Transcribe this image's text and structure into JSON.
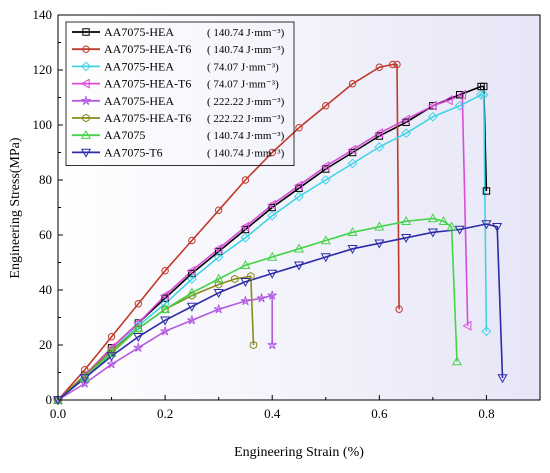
{
  "chart_data": {
    "type": "line",
    "xlabel": "Engineering Strain (%)",
    "ylabel": "Engineering Stress(MPa)",
    "xlim": [
      0,
      0.9
    ],
    "ylim": [
      0,
      140
    ],
    "xticks": [
      0.0,
      0.2,
      0.4,
      0.6,
      0.8
    ],
    "xtick_labels": [
      "0.0",
      "0.2",
      "0.4",
      "0.6",
      "0.8"
    ],
    "yticks": [
      0,
      20,
      40,
      60,
      80,
      100,
      120,
      140
    ],
    "ytick_labels": [
      "0",
      "20",
      "40",
      "60",
      "80",
      "100",
      "120",
      "140"
    ],
    "grid": false,
    "background": "gradient white-to-lavender",
    "legend": {
      "position": "top-left",
      "boxed": true
    },
    "series": [
      {
        "name": "AA7075-HEA",
        "energy": "( 140.74 J·mm⁻³)",
        "color": "#000000",
        "marker": "square",
        "x": [
          0.0,
          0.05,
          0.1,
          0.15,
          0.2,
          0.25,
          0.3,
          0.35,
          0.4,
          0.45,
          0.5,
          0.55,
          0.6,
          0.65,
          0.7,
          0.75,
          0.79,
          0.795,
          0.8
        ],
        "y": [
          0,
          9,
          19,
          28,
          37,
          46,
          54,
          62,
          70,
          77,
          84,
          90,
          96,
          101,
          107,
          111,
          114,
          114,
          76
        ]
      },
      {
        "name": "AA7075-HEA-T6",
        "energy": "( 140.74 J·mm⁻³)",
        "color": "#c0392b",
        "marker": "circle",
        "x": [
          0.0,
          0.05,
          0.1,
          0.15,
          0.2,
          0.25,
          0.3,
          0.35,
          0.4,
          0.45,
          0.5,
          0.55,
          0.6,
          0.625,
          0.633,
          0.637
        ],
        "y": [
          0,
          11,
          23,
          35,
          47,
          58,
          69,
          80,
          90,
          99,
          107,
          115,
          121,
          122,
          122,
          33
        ]
      },
      {
        "name": "AA7075-HEA",
        "energy": "( 74.07  J·mm⁻³)",
        "color": "#3fd3e6",
        "marker": "diamond",
        "x": [
          0.0,
          0.05,
          0.1,
          0.15,
          0.2,
          0.25,
          0.3,
          0.35,
          0.4,
          0.45,
          0.5,
          0.55,
          0.6,
          0.65,
          0.7,
          0.75,
          0.79,
          0.795,
          0.8
        ],
        "y": [
          0,
          8,
          18,
          27,
          35,
          44,
          52,
          59,
          67,
          74,
          80,
          86,
          92,
          97,
          103,
          107,
          111,
          111,
          25
        ]
      },
      {
        "name": "AA7075-HEA-T6",
        "energy": "( 74.07  J·mm⁻³)",
        "color": "#d94ad9",
        "marker": "triangle-left",
        "x": [
          0.0,
          0.05,
          0.1,
          0.15,
          0.2,
          0.25,
          0.3,
          0.35,
          0.4,
          0.45,
          0.5,
          0.55,
          0.6,
          0.65,
          0.7,
          0.73,
          0.755,
          0.765
        ],
        "y": [
          0,
          9,
          19,
          28,
          38,
          47,
          55,
          63,
          71,
          78,
          85,
          91,
          97,
          102,
          107,
          109,
          111,
          27
        ]
      },
      {
        "name": "AA7075-HEA",
        "energy": "( 222.22 J·mm⁻³)",
        "color": "#b35ce0",
        "marker": "star",
        "x": [
          0.0,
          0.05,
          0.1,
          0.15,
          0.2,
          0.25,
          0.3,
          0.35,
          0.38,
          0.4,
          0.4
        ],
        "y": [
          0,
          6,
          13,
          19,
          25,
          29,
          33,
          36,
          37,
          38,
          20
        ]
      },
      {
        "name": "AA7075-HEA-T6",
        "energy": "( 222.22 J·mm⁻³)",
        "color": "#8a8a1a",
        "marker": "hexagon",
        "x": [
          0.0,
          0.05,
          0.1,
          0.15,
          0.2,
          0.25,
          0.3,
          0.33,
          0.36,
          0.365
        ],
        "y": [
          0,
          9,
          18,
          26,
          33,
          38,
          42,
          44,
          45,
          20
        ]
      },
      {
        "name": "AA7075",
        "energy": "( 140.74 J·mm⁻³)",
        "color": "#44d44a",
        "marker": "triangle-up",
        "x": [
          0.0,
          0.05,
          0.1,
          0.15,
          0.2,
          0.25,
          0.3,
          0.35,
          0.4,
          0.45,
          0.5,
          0.55,
          0.6,
          0.65,
          0.7,
          0.72,
          0.735,
          0.745
        ],
        "y": [
          0,
          8,
          17,
          26,
          33,
          39,
          44,
          49,
          52,
          55,
          58,
          61,
          63,
          65,
          66,
          65,
          63,
          14
        ]
      },
      {
        "name": "AA7075-T6",
        "energy": "( 140.74 J·mm⁻³)",
        "color": "#2c2ca8",
        "marker": "triangle-down",
        "x": [
          0.0,
          0.05,
          0.1,
          0.15,
          0.2,
          0.25,
          0.3,
          0.35,
          0.4,
          0.45,
          0.5,
          0.55,
          0.6,
          0.65,
          0.7,
          0.75,
          0.8,
          0.82,
          0.83
        ],
        "y": [
          0,
          8,
          16,
          23,
          29,
          34,
          39,
          43,
          46,
          49,
          52,
          55,
          57,
          59,
          61,
          62,
          64,
          63,
          8
        ]
      }
    ]
  }
}
